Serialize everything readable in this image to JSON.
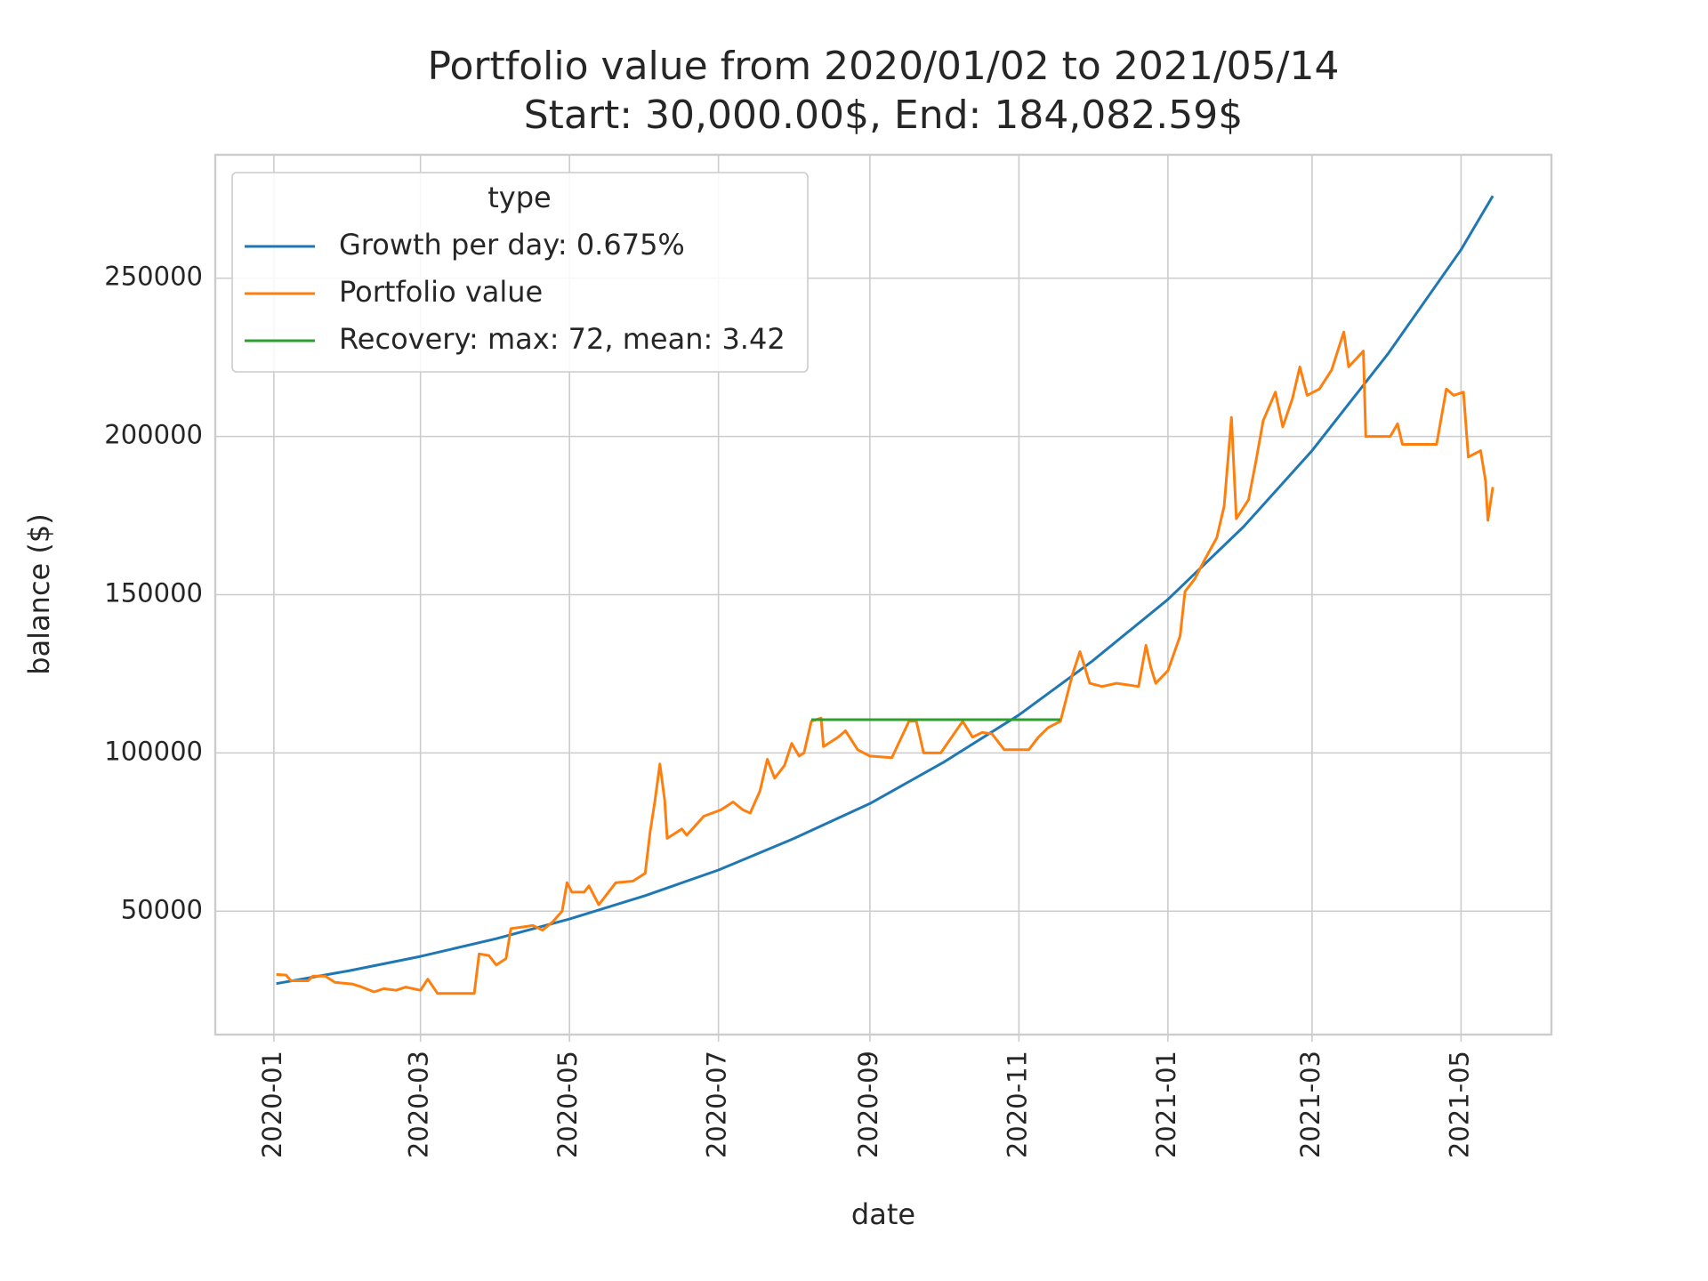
{
  "chart_data": {
    "type": "line",
    "title": "Portfolio value from 2020/01/02 to 2021/05/14",
    "subtitle": "Start: 30,000.00$, End: 184,082.59$",
    "x_label": "date",
    "y_label": "balance ($)",
    "legend_title": "type",
    "legend": "upper left",
    "grid": true,
    "xlim": [
      "2019-12-08",
      "2021-06-07"
    ],
    "xticks": [
      {
        "value": "2020-01-01",
        "label": "2020-01"
      },
      {
        "value": "2020-03-01",
        "label": "2020-03"
      },
      {
        "value": "2020-05-01",
        "label": "2020-05"
      },
      {
        "value": "2020-07-01",
        "label": "2020-07"
      },
      {
        "value": "2020-09-01",
        "label": "2020-09"
      },
      {
        "value": "2020-11-01",
        "label": "2020-11"
      },
      {
        "value": "2021-01-01",
        "label": "2021-01"
      },
      {
        "value": "2021-03-01",
        "label": "2021-03"
      },
      {
        "value": "2021-05-01",
        "label": "2021-05"
      }
    ],
    "ylim": [
      11000,
      289000
    ],
    "yticks": [
      50000,
      100000,
      150000,
      200000,
      250000
    ],
    "series": [
      {
        "name": "Growth per day: 0.675%",
        "color": "#1f77b4",
        "x": [
          "2020-01-02",
          "2020-02-01",
          "2020-03-01",
          "2020-04-01",
          "2020-05-01",
          "2020-06-01",
          "2020-07-01",
          "2020-08-01",
          "2020-09-01",
          "2020-10-01",
          "2020-11-01",
          "2020-12-01",
          "2021-01-01",
          "2021-02-01",
          "2021-03-01",
          "2021-04-01",
          "2021-05-01",
          "2021-05-14"
        ],
        "values": [
          27100,
          31200,
          35700,
          41300,
          47500,
          54900,
          63000,
          73000,
          84000,
          97000,
          112000,
          129000,
          148500,
          171500,
          195500,
          226000,
          259000,
          276000
        ]
      },
      {
        "name": "Portfolio value",
        "color": "#ff7f0e",
        "x": [
          "2020-01-02",
          "2020-01-06",
          "2020-01-08",
          "2020-01-15",
          "2020-01-17",
          "2020-01-22",
          "2020-01-26",
          "2020-02-02",
          "2020-02-06",
          "2020-02-11",
          "2020-02-15",
          "2020-02-20",
          "2020-02-24",
          "2020-03-01",
          "2020-03-04",
          "2020-03-08",
          "2020-03-23",
          "2020-03-25",
          "2020-03-29",
          "2020-04-01",
          "2020-04-05",
          "2020-04-07",
          "2020-04-12",
          "2020-04-16",
          "2020-04-20",
          "2020-04-24",
          "2020-04-28",
          "2020-04-30",
          "2020-05-02",
          "2020-05-07",
          "2020-05-09",
          "2020-05-13",
          "2020-05-20",
          "2020-05-27",
          "2020-06-01",
          "2020-06-03",
          "2020-06-05",
          "2020-06-07",
          "2020-06-09",
          "2020-06-10",
          "2020-06-16",
          "2020-06-18",
          "2020-06-25",
          "2020-07-02",
          "2020-07-07",
          "2020-07-11",
          "2020-07-14",
          "2020-07-18",
          "2020-07-21",
          "2020-07-24",
          "2020-07-28",
          "2020-07-31",
          "2020-08-03",
          "2020-08-05",
          "2020-08-08",
          "2020-08-12",
          "2020-08-13",
          "2020-08-19",
          "2020-08-22",
          "2020-08-27",
          "2020-09-01",
          "2020-09-10",
          "2020-09-17",
          "2020-09-20",
          "2020-09-23",
          "2020-09-30",
          "2020-10-09",
          "2020-10-13",
          "2020-10-17",
          "2020-10-21",
          "2020-10-26",
          "2020-11-05",
          "2020-11-09",
          "2020-11-13",
          "2020-11-18",
          "2020-11-23",
          "2020-11-26",
          "2020-11-30",
          "2020-12-05",
          "2020-12-11",
          "2020-12-20",
          "2020-12-23",
          "2020-12-25",
          "2020-12-27",
          "2021-01-01",
          "2021-01-06",
          "2021-01-08",
          "2021-01-12",
          "2021-01-16",
          "2021-01-21",
          "2021-01-24",
          "2021-01-27",
          "2021-01-29",
          "2021-02-03",
          "2021-02-06",
          "2021-02-09",
          "2021-02-14",
          "2021-02-17",
          "2021-02-21",
          "2021-02-24",
          "2021-02-27",
          "2021-03-04",
          "2021-03-09",
          "2021-03-14",
          "2021-03-16",
          "2021-03-22",
          "2021-03-23",
          "2021-04-02",
          "2021-04-05",
          "2021-04-07",
          "2021-04-21",
          "2021-04-25",
          "2021-04-28",
          "2021-05-02",
          "2021-05-04",
          "2021-05-09",
          "2021-05-11",
          "2021-05-12",
          "2021-05-14"
        ],
        "values": [
          30000,
          29800,
          28000,
          28000,
          29500,
          29500,
          27500,
          27000,
          26000,
          24500,
          25500,
          25000,
          26000,
          25000,
          28500,
          24000,
          24000,
          36500,
          36000,
          33000,
          35000,
          44500,
          45000,
          45500,
          44000,
          46500,
          50000,
          59000,
          56000,
          56000,
          58000,
          52000,
          59000,
          59500,
          62000,
          75000,
          85000,
          96500,
          85000,
          73000,
          76000,
          74000,
          80000,
          82000,
          84500,
          82000,
          81000,
          88000,
          98000,
          92000,
          96000,
          103000,
          99000,
          100000,
          110000,
          111000,
          102000,
          105000,
          107000,
          101000,
          99000,
          98500,
          110000,
          110000,
          100000,
          100000,
          110000,
          105000,
          106500,
          106000,
          101000,
          101000,
          105000,
          108000,
          110000,
          125000,
          132000,
          122000,
          121000,
          122000,
          121000,
          134000,
          127000,
          122000,
          126000,
          137000,
          151000,
          155000,
          161000,
          168000,
          178000,
          206000,
          174000,
          180000,
          192000,
          205000,
          214000,
          203000,
          212000,
          222000,
          213000,
          215000,
          221000,
          233000,
          222000,
          227000,
          200000,
          200000,
          204000,
          197500,
          197500,
          215000,
          213000,
          214000,
          193500,
          195500,
          186000,
          173500,
          184000
        ]
      },
      {
        "name": "Recovery: max: 72, mean: 3.42",
        "color": "#2ca02c",
        "x": [
          "2020-08-08",
          "2020-11-18"
        ],
        "values": [
          110500,
          110500
        ]
      }
    ]
  }
}
